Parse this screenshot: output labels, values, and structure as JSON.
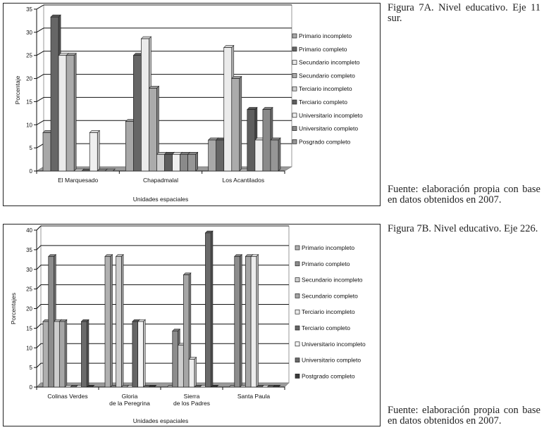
{
  "captions": {
    "fig_a_title": "Figura 7A. Nivel educativo. Eje 11 sur.",
    "fig_a_source": "Fuente: elaboración propia con base en datos obtenidos en 2007.",
    "fig_b_title": "Figura 7B. Nivel educativo. Eje 226.",
    "fig_b_source": "Fuente: elaboración propia con base en datos obtenidos en 2007."
  },
  "chart_data": [
    {
      "type": "bar",
      "style": "3d-clustered-column",
      "title": "",
      "xlabel": "Unidades espaciales",
      "ylabel": "Porcentaje",
      "ylim": [
        0,
        35
      ],
      "yticks": [
        0,
        5,
        10,
        15,
        20,
        25,
        30,
        35
      ],
      "grid": true,
      "legend_position": "right",
      "categories": [
        [
          "El Marquesado"
        ],
        [
          "Chapadmalal"
        ],
        [
          "Los Acantilados"
        ]
      ],
      "series": [
        {
          "name": "Primario incompleto",
          "color": "#a8a8a8",
          "values": [
            8.3,
            10.7,
            6.7
          ]
        },
        {
          "name": "Primario completo",
          "color": "#666666",
          "values": [
            33.3,
            25.0,
            6.7
          ]
        },
        {
          "name": "Secundario incompleto",
          "color": "#ebebeb",
          "values": [
            25.0,
            28.6,
            26.7
          ]
        },
        {
          "name": "Secundario completo",
          "color": "#ababab",
          "values": [
            25.0,
            17.9,
            20.0
          ]
        },
        {
          "name": "Terciario incompleto",
          "color": "#d0d0d0",
          "values": [
            0,
            3.6,
            0
          ]
        },
        {
          "name": "Terciario completo",
          "color": "#5e5e5e",
          "values": [
            0,
            3.6,
            13.3
          ]
        },
        {
          "name": "Universitario incompleto",
          "color": "#efefef",
          "values": [
            8.3,
            3.6,
            6.7
          ]
        },
        {
          "name": "Universitario completo",
          "color": "#8a8a8a",
          "values": [
            0,
            3.6,
            13.3
          ]
        },
        {
          "name": "Posgrado completo",
          "color": "#969696",
          "values": [
            0,
            3.6,
            6.7
          ]
        }
      ]
    },
    {
      "type": "bar",
      "style": "3d-clustered-column",
      "title": "",
      "xlabel": "Unidades espaciales",
      "ylabel": "Porcentajes",
      "ylim": [
        0,
        40
      ],
      "yticks": [
        0,
        5,
        10,
        15,
        20,
        25,
        30,
        35,
        40
      ],
      "grid": true,
      "legend_position": "right",
      "categories": [
        [
          "Colinas Verdes"
        ],
        [
          "Gloria",
          "de la Peregrina"
        ],
        [
          "Sierra",
          "de los Padres"
        ],
        [
          "Santa Paula"
        ]
      ],
      "series": [
        {
          "name": "Primario incompleto",
          "color": "#b0b0b0",
          "values": [
            16.7,
            33.3,
            0,
            0
          ]
        },
        {
          "name": "Primario completo",
          "color": "#8c8c8c",
          "values": [
            33.3,
            0,
            14.3,
            33.3
          ]
        },
        {
          "name": "Secundario incompleto",
          "color": "#cdcdcd",
          "values": [
            16.7,
            33.3,
            10.7,
            0
          ]
        },
        {
          "name": "Secundario completo",
          "color": "#a6a6a6",
          "values": [
            16.7,
            0,
            28.6,
            33.3
          ]
        },
        {
          "name": "Terciario incompleto",
          "color": "#ececec",
          "values": [
            0,
            0,
            7.1,
            33.3
          ]
        },
        {
          "name": "Terciario completo",
          "color": "#666666",
          "values": [
            0,
            16.7,
            0,
            0
          ]
        },
        {
          "name": "Universitario incompleto",
          "color": "#f4f4f4",
          "values": [
            0,
            16.7,
            0,
            0
          ]
        },
        {
          "name": "Universitario completo",
          "color": "#6a6a6a",
          "values": [
            16.7,
            0,
            39.3,
            0
          ]
        },
        {
          "name": "Postgrado completo",
          "color": "#3a3a3a",
          "values": [
            0,
            0,
            0,
            0
          ]
        }
      ]
    }
  ]
}
